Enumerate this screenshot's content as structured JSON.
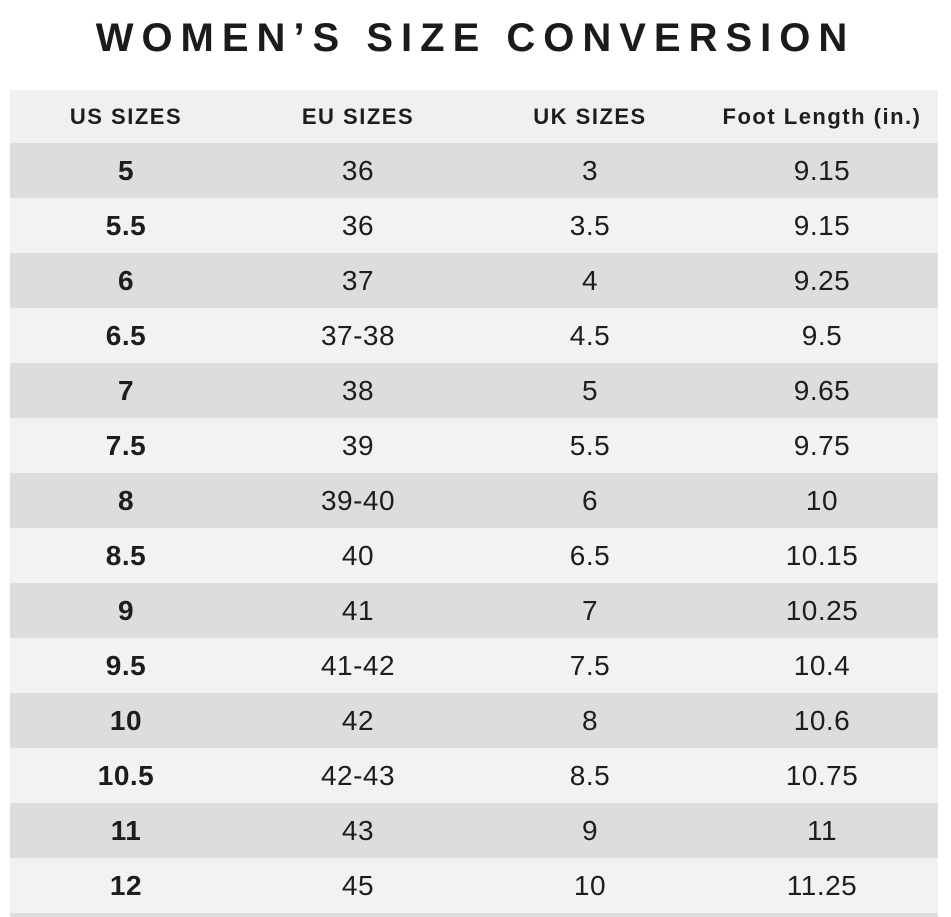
{
  "title": "WOMEN’S SIZE CONVERSION",
  "chart_data": {
    "type": "table",
    "title": "WOMEN’S SIZE CONVERSION",
    "columns": [
      "US SIZES",
      "EU SIZES",
      "UK SIZES",
      "Foot Length (in.)"
    ],
    "rows": [
      [
        "5",
        "36",
        "3",
        "9.15"
      ],
      [
        "5.5",
        "36",
        "3.5",
        "9.15"
      ],
      [
        "6",
        "37",
        "4",
        "9.25"
      ],
      [
        "6.5",
        "37-38",
        "4.5",
        "9.5"
      ],
      [
        "7",
        "38",
        "5",
        "9.65"
      ],
      [
        "7.5",
        "39",
        "5.5",
        "9.75"
      ],
      [
        "8",
        "39-40",
        "6",
        "10"
      ],
      [
        "8.5",
        "40",
        "6.5",
        "10.15"
      ],
      [
        "9",
        "41",
        "7",
        "10.25"
      ],
      [
        "9.5",
        "41-42",
        "7.5",
        "10.4"
      ],
      [
        "10",
        "42",
        "8",
        "10.6"
      ],
      [
        "10.5",
        "42-43",
        "8.5",
        "10.75"
      ],
      [
        "11",
        "43",
        "9",
        "11"
      ],
      [
        "12",
        "45",
        "10",
        "11.25"
      ]
    ],
    "layout": {
      "row_striping": "first data row gray, alternating",
      "legend": "none",
      "grid": "off"
    }
  },
  "colors": {
    "page_bg": "#ffffff",
    "header_bg": "#f0f0ef",
    "row_gray": "#dbddde",
    "row_light": "#f1f2f2",
    "text": "#1d1d1d"
  }
}
